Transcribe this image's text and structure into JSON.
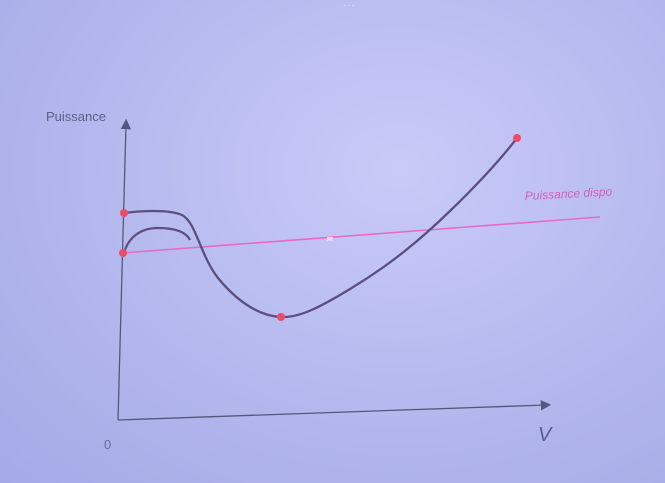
{
  "diagram": {
    "ylabel": "Puissance",
    "xlabel": "V",
    "origin_label": "0",
    "line_label": "Puissance dispo",
    "colors": {
      "background": "#b8bbef",
      "axis": "#55577a",
      "power_curve": "#5a4f7e",
      "available_line": "#e86ac6",
      "points": "#ef4a6a",
      "labels": "#5b5e8a",
      "line_label": "#d35fbf"
    }
  }
}
